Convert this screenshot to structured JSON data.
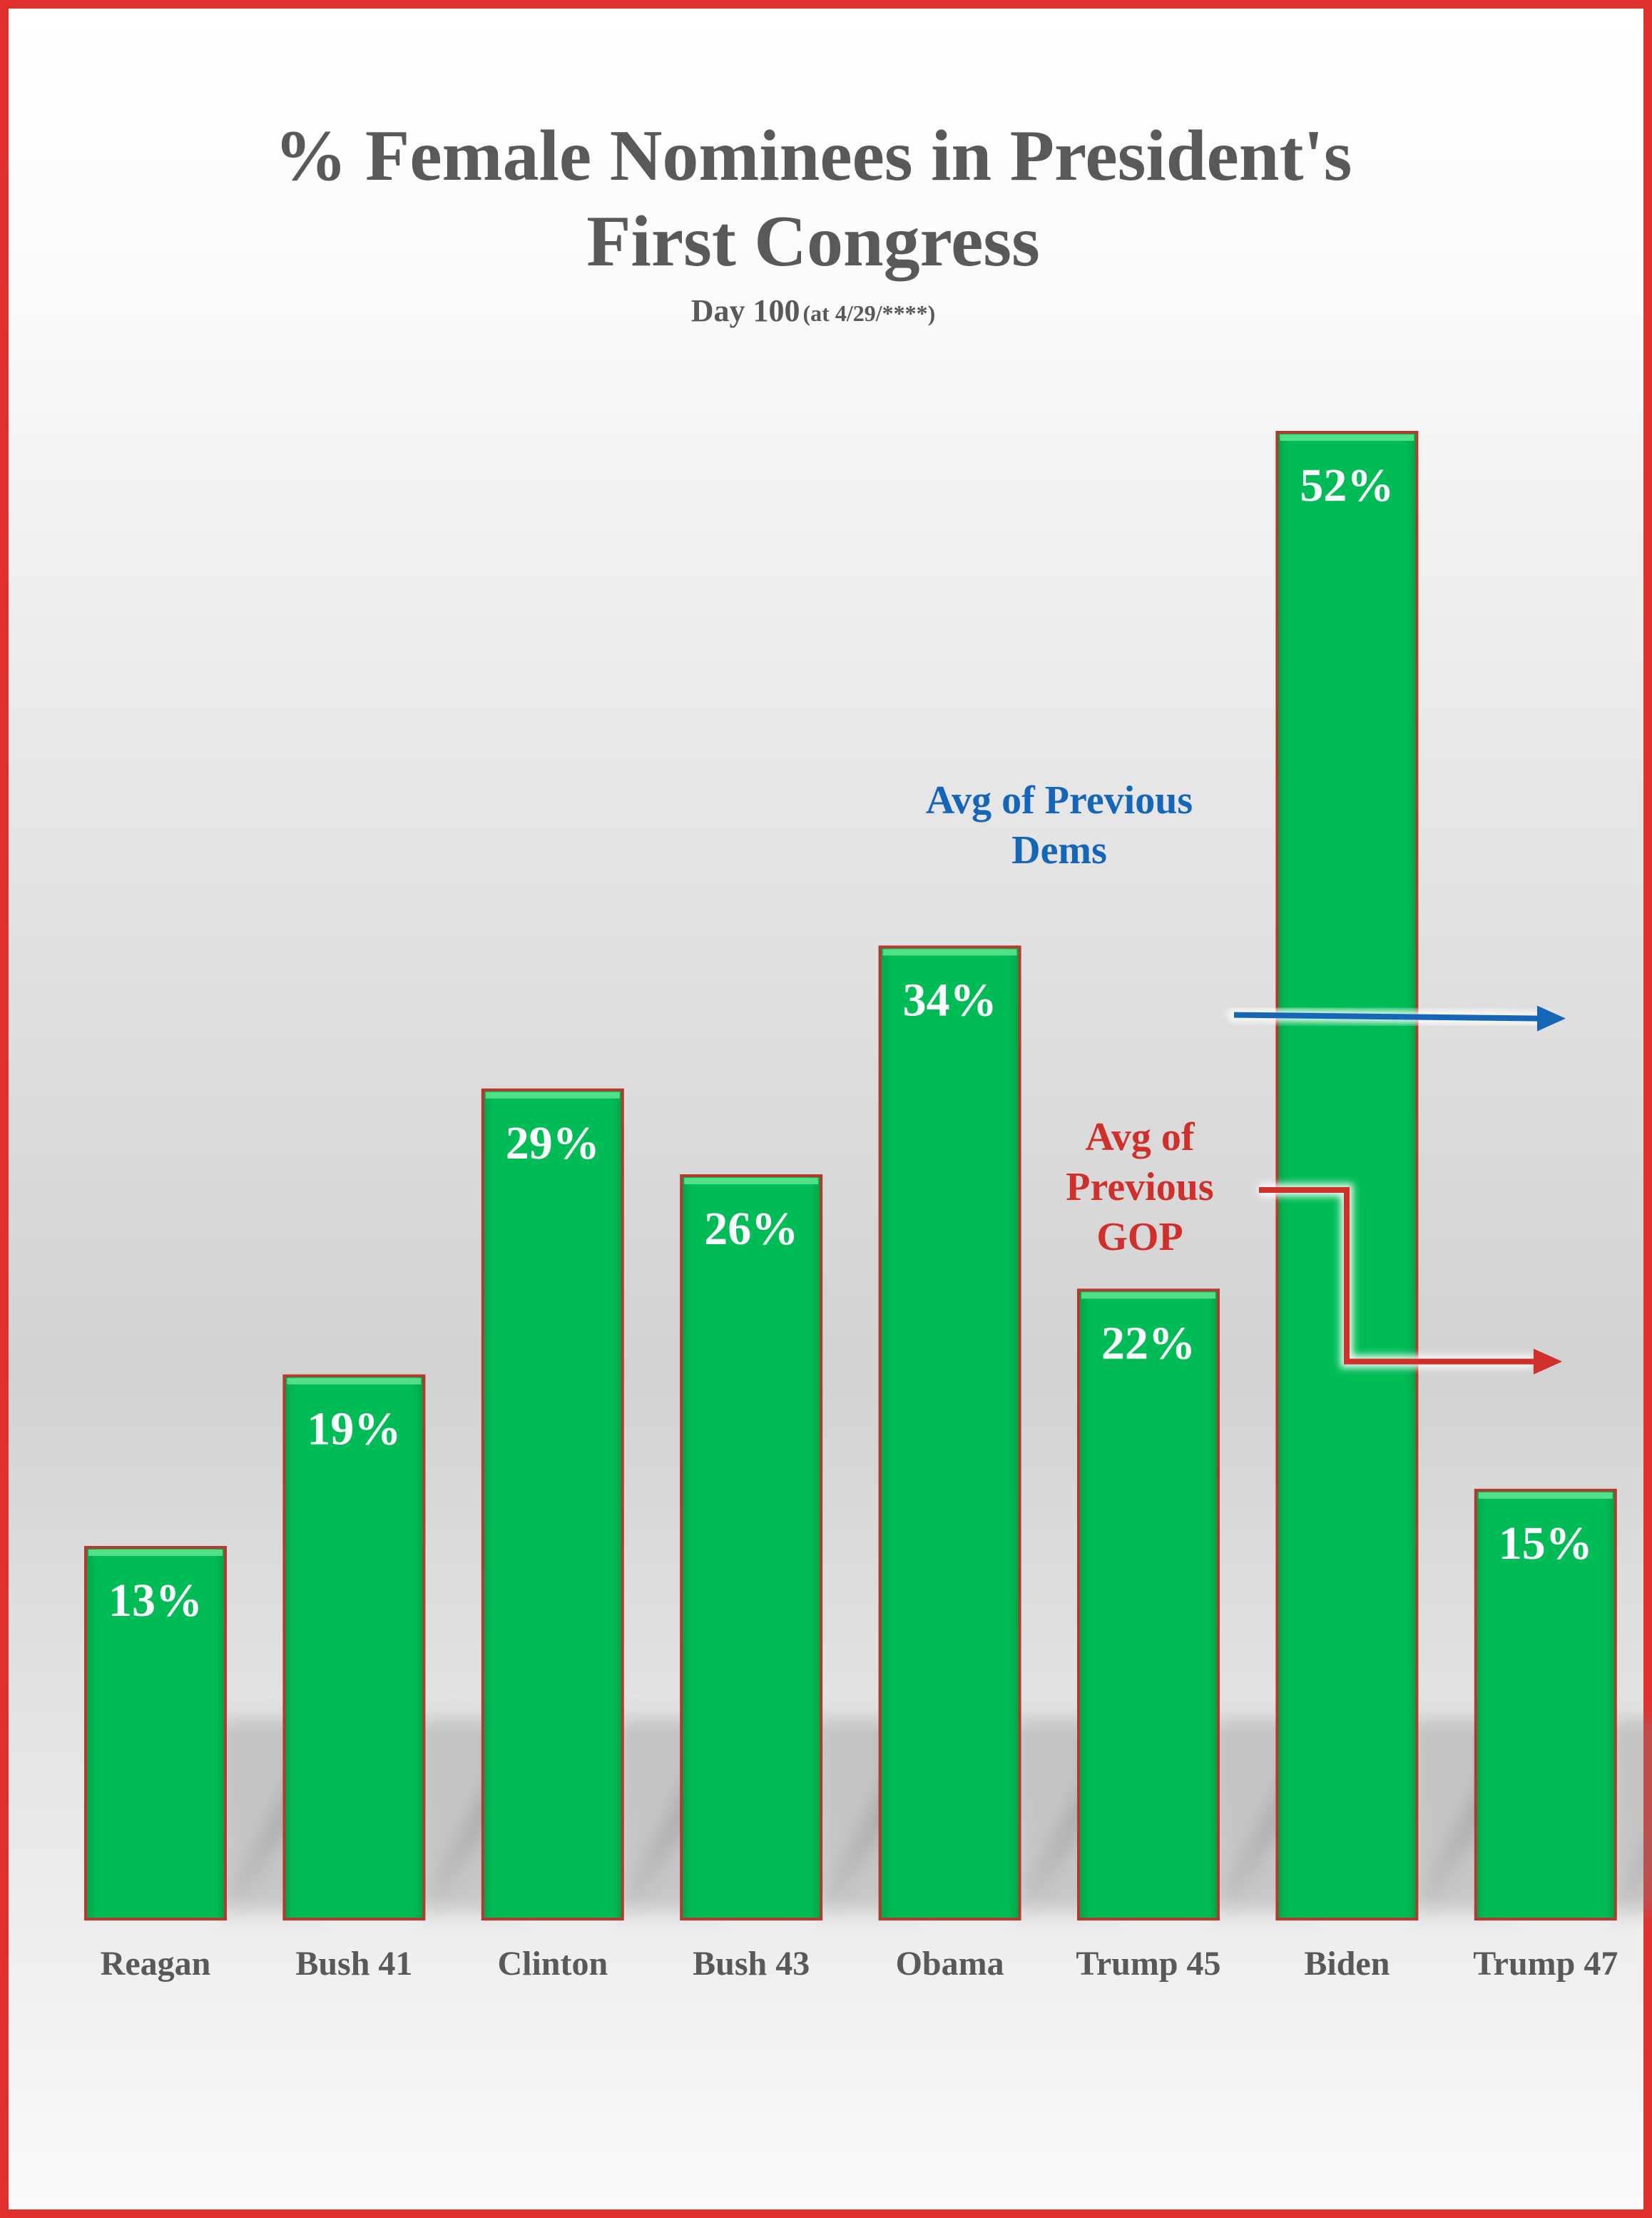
{
  "chart_data": {
    "type": "bar",
    "title_line1": "% Female Nominees in President's",
    "title_line2": "First Congress",
    "subtitle_main": "Day 100",
    "subtitle_small": "(at 4/29/****)",
    "categories": [
      "Reagan",
      "Bush 41",
      "Clinton",
      "Bush 43",
      "Obama",
      "Trump 45",
      "Biden",
      "Trump 47"
    ],
    "values": [
      13,
      19,
      29,
      26,
      34,
      22,
      52,
      15
    ],
    "value_labels": [
      "13%",
      "19%",
      "29%",
      "26%",
      "34%",
      "22%",
      "52%",
      "15%"
    ],
    "ylim": [
      0,
      52
    ],
    "grid": false,
    "colors": {
      "bar": "#00b853",
      "bar_edge": "#b23a2f",
      "dem": "#1565b8",
      "gop": "#d0302c",
      "frame": "#e0302e"
    },
    "annotations": [
      {
        "id": "dem",
        "lines": [
          "Avg of Previous",
          "Dems"
        ],
        "value": 31.5
      },
      {
        "id": "gop",
        "lines": [
          "Avg of",
          "Previous",
          "GOP"
        ],
        "value": 19.5
      }
    ]
  }
}
